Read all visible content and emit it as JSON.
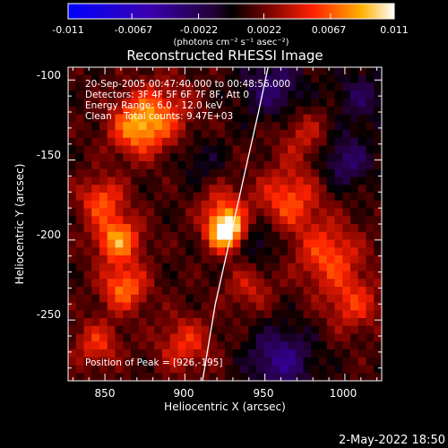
{
  "chart_data": {
    "type": "heatmap",
    "title": "Reconstructed RHESSI Image",
    "xlabel": "Heliocentric X (arcsec)",
    "ylabel": "Heliocentric Y (arcsec)",
    "xlim": [
      827,
      1023
    ],
    "ylim": [
      -288,
      -92
    ],
    "xticks": [
      850,
      900,
      950,
      1000
    ],
    "yticks": [
      -100,
      -150,
      -200,
      -250
    ],
    "colorbar": {
      "range": [
        -0.011,
        0.011
      ],
      "ticks": [
        "-0.011",
        "-0.0067",
        "-0.0022",
        "0.0022",
        "0.0067",
        "0.011"
      ],
      "unit_label": "(photons cm⁻² s⁻¹ asec⁻²)"
    },
    "annotations": [
      "20-Sep-2005 00:47:40.000 to 00:48:56.000",
      "Detectors: 3F 4F 5F 6F 7F 8F, Att 0",
      "Energy Range: 6.0 - 12.0 keV",
      "Clean    Total counts: 9.47E+03"
    ],
    "peak_label": "Position of Peak = [926,-195]",
    "peak": {
      "x": 926,
      "y": -195,
      "value": 0.011
    },
    "limb": [
      [
        911,
        -288
      ],
      [
        919,
        -240
      ],
      [
        928,
        -200
      ],
      [
        937,
        -160
      ],
      [
        946,
        -120
      ],
      [
        952,
        -92
      ]
    ],
    "blobs": [
      {
        "x": 926,
        "y": -195,
        "value": 0.011,
        "r": 8
      },
      {
        "x": 924,
        "y": -180,
        "value": 0.004,
        "r": 10
      },
      {
        "x": 858,
        "y": -200,
        "value": 0.007,
        "r": 10
      },
      {
        "x": 862,
        "y": -230,
        "value": 0.006,
        "r": 10
      },
      {
        "x": 870,
        "y": -130,
        "value": 0.006,
        "r": 12
      },
      {
        "x": 848,
        "y": -175,
        "value": 0.005,
        "r": 10
      },
      {
        "x": 885,
        "y": -120,
        "value": 0.004,
        "r": 14
      },
      {
        "x": 845,
        "y": -265,
        "value": 0.004,
        "r": 10
      },
      {
        "x": 900,
        "y": -265,
        "value": 0.004,
        "r": 12
      },
      {
        "x": 965,
        "y": -175,
        "value": 0.005,
        "r": 14
      },
      {
        "x": 990,
        "y": -210,
        "value": 0.005,
        "r": 14
      },
      {
        "x": 1005,
        "y": -240,
        "value": 0.004,
        "r": 12
      },
      {
        "x": 975,
        "y": -135,
        "value": 0.003,
        "r": 12
      },
      {
        "x": 940,
        "y": -230,
        "value": 0.003,
        "r": 10
      },
      {
        "x": 955,
        "y": -105,
        "value": -0.004,
        "r": 14
      },
      {
        "x": 1000,
        "y": -150,
        "value": -0.004,
        "r": 12
      },
      {
        "x": 960,
        "y": -275,
        "value": -0.005,
        "r": 14
      },
      {
        "x": 945,
        "y": -200,
        "value": -0.003,
        "r": 10
      },
      {
        "x": 910,
        "y": -150,
        "value": -0.002,
        "r": 10
      },
      {
        "x": 1010,
        "y": -110,
        "value": -0.003,
        "r": 12
      }
    ]
  },
  "footer_date": "2-May-2022 18:50"
}
